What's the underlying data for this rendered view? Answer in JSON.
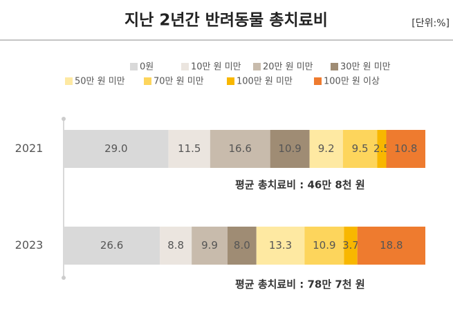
{
  "chart_data": {
    "type": "bar",
    "orientation": "horizontal",
    "stacked": true,
    "title": "지난 2년간 반려동물 총치료비",
    "unit": "[단위:%]",
    "categories": [
      "2021",
      "2023"
    ],
    "xlim": [
      0,
      100
    ],
    "series": [
      {
        "name": "0원",
        "color": "#d9d9d9",
        "values": [
          29.0,
          26.6
        ],
        "value_labels": [
          "29.0",
          "26.6"
        ]
      },
      {
        "name": "10만 원 미만",
        "color": "#ebe5df",
        "values": [
          11.5,
          8.8
        ],
        "value_labels": [
          "11.5",
          "8.8"
        ]
      },
      {
        "name": "20만 원 미만",
        "color": "#c8bbac",
        "values": [
          16.6,
          9.9
        ],
        "value_labels": [
          "16.6",
          "9.9"
        ]
      },
      {
        "name": "30만 원 미만",
        "color": "#9f8c74",
        "values": [
          10.9,
          8.0
        ],
        "value_labels": [
          "10.9",
          "8.0"
        ]
      },
      {
        "name": "50만 원 미만",
        "color": "#fee9a2",
        "values": [
          9.2,
          13.3
        ],
        "value_labels": [
          "9.2",
          "13.3"
        ]
      },
      {
        "name": "70만 원 미만",
        "color": "#fdd55c",
        "values": [
          9.5,
          10.9
        ],
        "value_labels": [
          "9.5",
          "10.9"
        ]
      },
      {
        "name": "100만 원 미만",
        "color": "#f8b700",
        "values": [
          2.5,
          3.7
        ],
        "value_labels": [
          "2.5",
          "3.7"
        ]
      },
      {
        "name": "100만 원 이상",
        "color": "#ee7b2f",
        "values": [
          10.8,
          18.8
        ],
        "value_labels": [
          "10.8",
          "18.8"
        ]
      }
    ],
    "annotations": [
      "평균 총치료비 : 46만 8천 원",
      "평균 총치료비 : 78만 7천 원"
    ]
  }
}
